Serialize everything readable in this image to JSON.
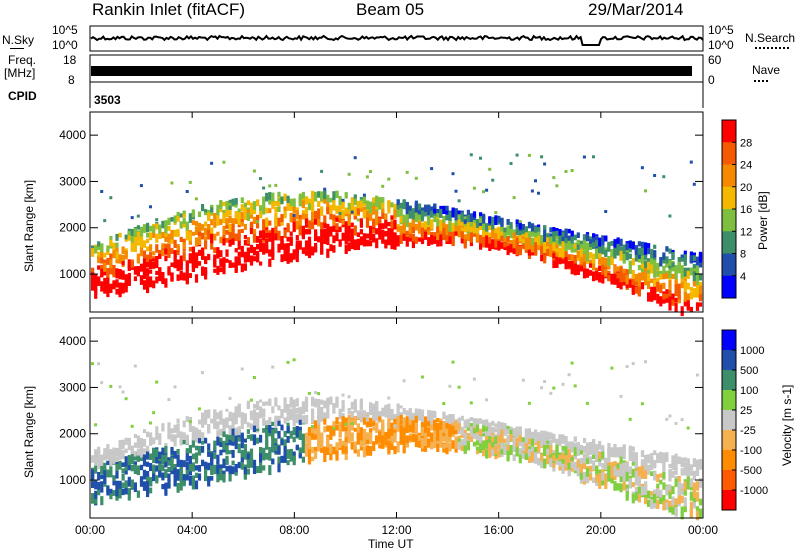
{
  "header": {
    "station": "Rankin Inlet (fitACF)",
    "beam": "Beam 05",
    "date": "29/Mar/2014"
  },
  "panels": {
    "nsky": {
      "label": "N.Sky",
      "right_label": "N.Search",
      "left_ticks": [
        "10^5",
        "10^0"
      ],
      "right_ticks": [
        "10^5",
        "10^0"
      ]
    },
    "freq": {
      "label_top": "Freq.",
      "label_unit": "[MHz]",
      "right_label": "Nave",
      "left_ticks": [
        "18",
        "8"
      ],
      "right_ticks": [
        "60",
        "0"
      ]
    },
    "cpid": {
      "label": "CPID",
      "value": "3503"
    }
  },
  "colors": {
    "power": [
      "#0000ff",
      "#1f4faa",
      "#3d8f6a",
      "#7fbf3f",
      "#f5b800",
      "#f58a00",
      "#f55a00",
      "#ff0000"
    ],
    "velocity": [
      "#ff0000",
      "#ff5a00",
      "#ff8c00",
      "#f5b050",
      "#c8c8c8",
      "#7fcf3f",
      "#3d8f6a",
      "#1f4faa",
      "#0000ff"
    ]
  },
  "chart_data": [
    {
      "type": "heatmap",
      "title": "",
      "xlabel": "Time UT",
      "ylabel": "Slant Range [km]",
      "x_ticks": [
        "00:00",
        "04:00",
        "08:00",
        "12:00",
        "16:00",
        "20:00",
        "00:00"
      ],
      "y_ticks": [
        "1000",
        "2000",
        "3000",
        "4000"
      ],
      "ylim": [
        180,
        4500
      ],
      "colorbar_label": "Power [dB]",
      "colorbar_ticks": [
        "4",
        "8",
        "12",
        "16",
        "20",
        "24",
        "28"
      ]
    },
    {
      "type": "heatmap",
      "title": "",
      "xlabel": "Time UT",
      "ylabel": "Slant Range [km]",
      "x_ticks": [
        "00:00",
        "04:00",
        "08:00",
        "12:00",
        "16:00",
        "20:00",
        "00:00"
      ],
      "y_ticks": [
        "1000",
        "2000",
        "3000",
        "4000"
      ],
      "ylim": [
        180,
        4500
      ],
      "colorbar_label": "Velocity [m s-1]",
      "colorbar_ticks": [
        "1000",
        "500",
        "100",
        "25",
        "-25",
        "-100",
        "-500",
        "-1000"
      ]
    }
  ]
}
